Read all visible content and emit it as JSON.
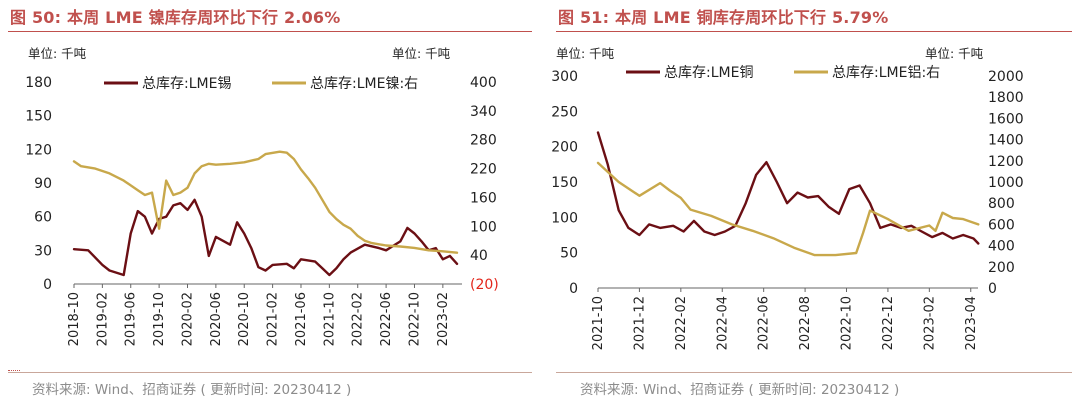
{
  "panels": [
    {
      "id": "left",
      "title": "图 50:  本周 LME 镍库存周环比下行 2.06%",
      "unit_left": "单位: 千吨",
      "unit_right": "单位: 千吨",
      "source": "资料来源: Wind、招商证券 ( 更新时间: 20230412 )"
    },
    {
      "id": "right",
      "title": "图 51:  本周 LME 铜库存周环比下行 5.79%",
      "unit_left": "单位: 千吨",
      "unit_right": "单位: 千吨",
      "source": "资料来源: Wind、招商证券 ( 更新时间: 20230412 )"
    }
  ],
  "colors": {
    "title": "#c0504d",
    "series_dark": "#6b0f14",
    "series_gold": "#c8a84b",
    "negative_tick": "#e3261b"
  },
  "chart_data": [
    {
      "type": "line",
      "title": "图 50:  本周 LME 镍库存周环比下行 2.06%",
      "xlabel": "",
      "ylabel": "单位: 千吨",
      "y2label": "单位: 千吨",
      "x_tick_labels": [
        "2018-10",
        "2019-02",
        "2019-06",
        "2019-10",
        "2020-02",
        "2020-06",
        "2020-10",
        "2021-02",
        "2021-06",
        "2021-10",
        "2022-02",
        "2022-06",
        "2022-10",
        "2023-02"
      ],
      "ylim": [
        0,
        180
      ],
      "y_ticks": [
        0,
        30,
        60,
        90,
        120,
        150,
        180
      ],
      "y2lim": [
        -20,
        400
      ],
      "y2_ticks": [
        -20,
        40,
        100,
        160,
        220,
        280,
        340,
        400
      ],
      "y2_tick_labels": [
        "(20)",
        "40",
        "100",
        "160",
        "220",
        "280",
        "340",
        "400"
      ],
      "legend": "top",
      "grid": false,
      "series": [
        {
          "name": "总库存:LME锡",
          "axis": "left",
          "color": "#6b0f14",
          "x": [
            "2018-10",
            "2018-12",
            "2019-02",
            "2019-03",
            "2019-05",
            "2019-06",
            "2019-07",
            "2019-08",
            "2019-09",
            "2019-10",
            "2019-11",
            "2019-12",
            "2020-01",
            "2020-02",
            "2020-03",
            "2020-04",
            "2020-05",
            "2020-06",
            "2020-08",
            "2020-09",
            "2020-10",
            "2020-11",
            "2020-12",
            "2021-01",
            "2021-02",
            "2021-04",
            "2021-05",
            "2021-06",
            "2021-08",
            "2021-09",
            "2021-10",
            "2021-11",
            "2021-12",
            "2022-01",
            "2022-03",
            "2022-05",
            "2022-06",
            "2022-08",
            "2022-09",
            "2022-10",
            "2022-11",
            "2022-12",
            "2023-01",
            "2023-02",
            "2023-03",
            "2023-04"
          ],
          "y": [
            31,
            30,
            17,
            12,
            8,
            45,
            65,
            60,
            45,
            58,
            60,
            70,
            72,
            66,
            75,
            60,
            25,
            42,
            35,
            55,
            45,
            32,
            15,
            12,
            17,
            18,
            14,
            22,
            20,
            14,
            8,
            14,
            22,
            28,
            35,
            32,
            30,
            38,
            50,
            45,
            38,
            30,
            32,
            22,
            25,
            18
          ]
        },
        {
          "name": "总库存:LME镍:右",
          "axis": "right",
          "color": "#c8a84b",
          "x": [
            "2018-10",
            "2018-11",
            "2019-01",
            "2019-03",
            "2019-05",
            "2019-07",
            "2019-08",
            "2019-09",
            "2019-10",
            "2019-11",
            "2019-12",
            "2020-01",
            "2020-02",
            "2020-03",
            "2020-04",
            "2020-05",
            "2020-06",
            "2020-08",
            "2020-10",
            "2020-12",
            "2021-01",
            "2021-03",
            "2021-04",
            "2021-05",
            "2021-06",
            "2021-07",
            "2021-08",
            "2021-09",
            "2021-10",
            "2021-11",
            "2021-12",
            "2022-01",
            "2022-02",
            "2022-03",
            "2022-04",
            "2022-06",
            "2022-08",
            "2022-10",
            "2022-12",
            "2023-02",
            "2023-04"
          ],
          "y": [
            235,
            225,
            220,
            210,
            195,
            175,
            165,
            170,
            95,
            195,
            165,
            170,
            180,
            210,
            225,
            230,
            228,
            230,
            233,
            240,
            250,
            255,
            253,
            240,
            218,
            200,
            180,
            155,
            130,
            115,
            103,
            95,
            80,
            70,
            65,
            60,
            58,
            55,
            50,
            48,
            45
          ]
        }
      ]
    },
    {
      "type": "line",
      "title": "图 51:  本周 LME 铜库存周环比下行 5.79%",
      "xlabel": "",
      "ylabel": "单位: 千吨",
      "y2label": "单位: 千吨",
      "x_tick_labels": [
        "2021-10",
        "2021-12",
        "2022-02",
        "2022-04",
        "2022-06",
        "2022-08",
        "2022-10",
        "2022-12",
        "2023-02",
        "2023-04"
      ],
      "ylim": [
        0,
        300
      ],
      "y_ticks": [
        0,
        50,
        100,
        150,
        200,
        250,
        300
      ],
      "y2lim": [
        0,
        2000
      ],
      "y2_ticks": [
        0,
        200,
        400,
        600,
        800,
        1000,
        1200,
        1400,
        1600,
        1800,
        2000
      ],
      "legend": "top",
      "grid": false,
      "series": [
        {
          "name": "总库存:LME铜",
          "axis": "left",
          "color": "#6b0f14",
          "x": [
            "2021-10-01",
            "2021-10-15",
            "2021-11-01",
            "2021-11-15",
            "2021-12-01",
            "2021-12-15",
            "2022-01-01",
            "2022-01-20",
            "2022-02-05",
            "2022-02-20",
            "2022-03-05",
            "2022-03-20",
            "2022-04-05",
            "2022-04-20",
            "2022-05-05",
            "2022-05-20",
            "2022-06-05",
            "2022-06-20",
            "2022-07-05",
            "2022-07-20",
            "2022-08-05",
            "2022-08-20",
            "2022-09-05",
            "2022-09-20",
            "2022-10-05",
            "2022-10-20",
            "2022-11-05",
            "2022-11-20",
            "2022-12-05",
            "2022-12-20",
            "2023-01-05",
            "2023-01-20",
            "2023-02-05",
            "2023-02-20",
            "2023-03-05",
            "2023-03-20",
            "2023-04-05",
            "2023-04-12"
          ],
          "y": [
            220,
            175,
            110,
            85,
            75,
            90,
            85,
            88,
            80,
            95,
            80,
            75,
            80,
            88,
            120,
            160,
            178,
            150,
            120,
            135,
            128,
            130,
            115,
            105,
            140,
            145,
            120,
            85,
            90,
            85,
            88,
            80,
            72,
            78,
            70,
            75,
            70,
            63
          ]
        },
        {
          "name": "总库存:LME铝:右",
          "axis": "right",
          "color": "#c8a84b",
          "x": [
            "2021-10-01",
            "2021-11-01",
            "2021-12-01",
            "2022-01-01",
            "2022-01-15",
            "2022-02-01",
            "2022-02-15",
            "2022-03-15",
            "2022-04-15",
            "2022-05-15",
            "2022-06-15",
            "2022-07-15",
            "2022-08-15",
            "2022-09-15",
            "2022-10-15",
            "2022-10-25",
            "2022-11-05",
            "2022-12-01",
            "2023-01-01",
            "2023-02-01",
            "2023-02-10",
            "2023-02-20",
            "2023-03-05",
            "2023-03-20",
            "2023-04-12"
          ],
          "y": [
            1180,
            1000,
            870,
            990,
            920,
            850,
            740,
            680,
            600,
            540,
            470,
            380,
            310,
            310,
            330,
            520,
            730,
            650,
            540,
            590,
            540,
            710,
            660,
            650,
            600
          ]
        }
      ]
    }
  ]
}
